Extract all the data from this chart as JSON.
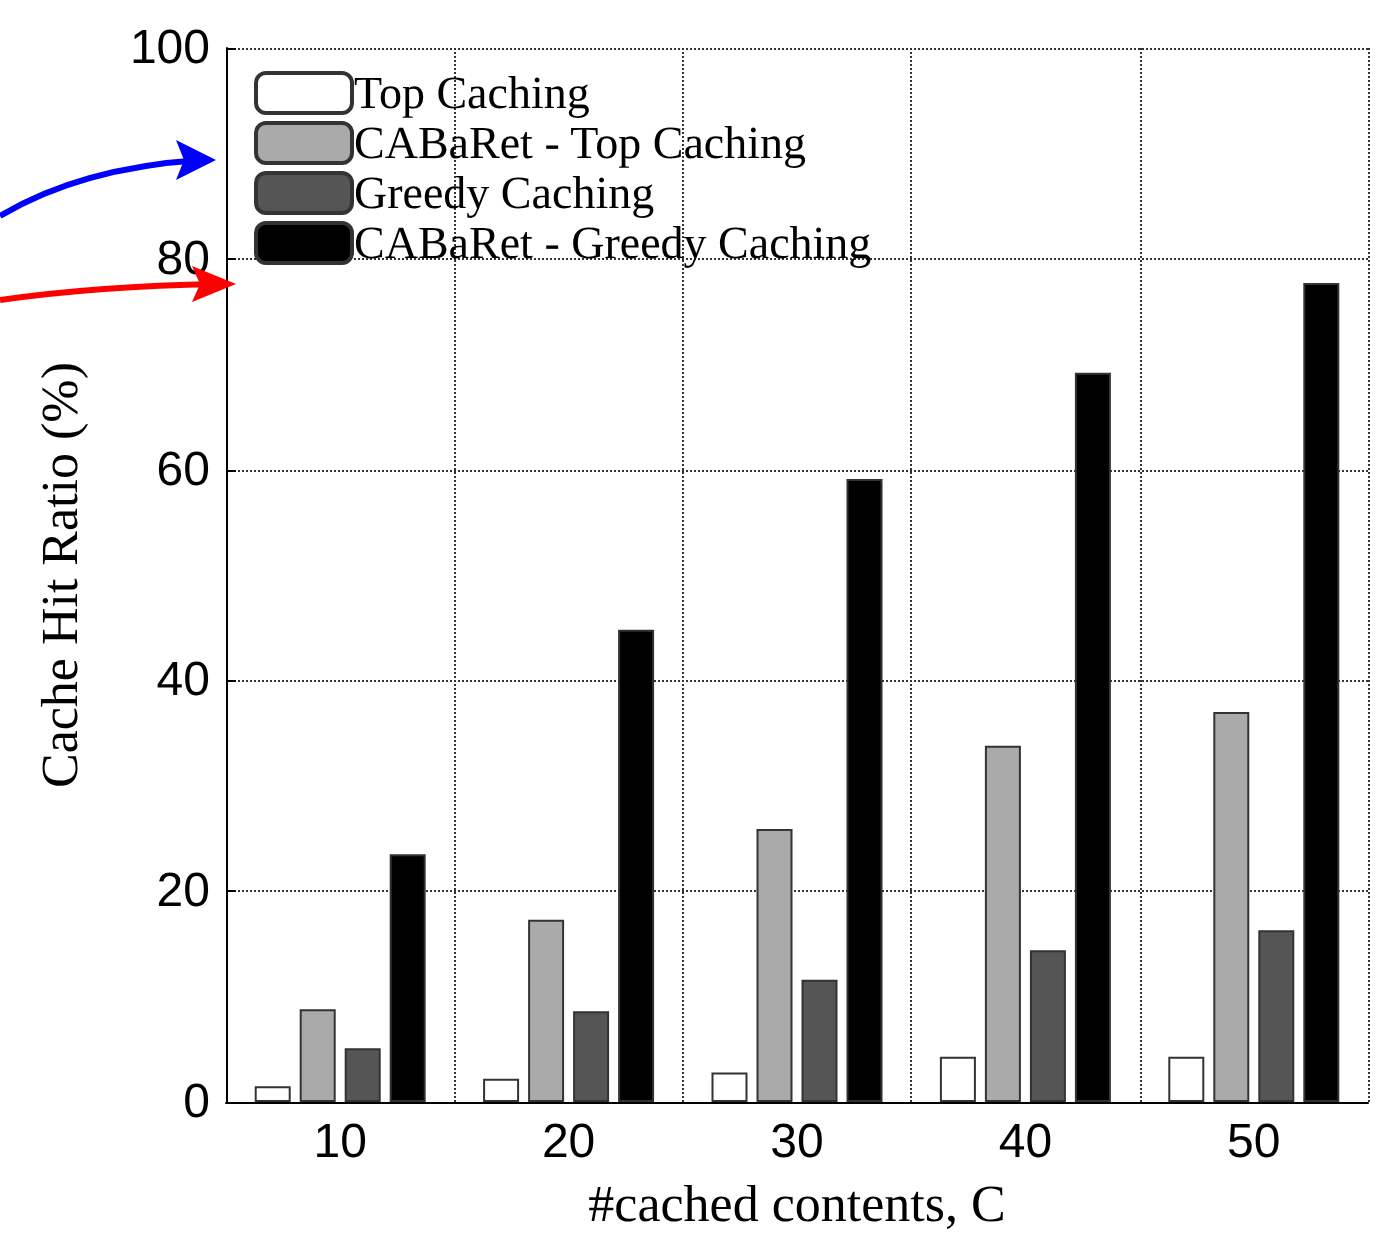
{
  "chart_data": {
    "type": "bar",
    "xlabel": "#cached contents, C",
    "ylabel": "Cache Hit Ratio (%)",
    "categories": [
      "10",
      "20",
      "30",
      "40",
      "50"
    ],
    "series": [
      {
        "name": "Top Caching",
        "color": "#ffffff",
        "values": [
          1.5,
          2.2,
          2.8,
          4.3,
          4.3
        ]
      },
      {
        "name": "CABaRet - Top Caching",
        "color": "#aaaaaa",
        "values": [
          8.8,
          17.3,
          25.9,
          33.8,
          37
        ]
      },
      {
        "name": "Greedy Caching",
        "color": "#555555",
        "values": [
          5.1,
          8.6,
          11.6,
          14.4,
          16.3
        ]
      },
      {
        "name": "CABaRet - Greedy Caching",
        "color": "#000000",
        "values": [
          23.5,
          44.8,
          59.1,
          69.2,
          77.7
        ]
      }
    ],
    "ylim": [
      0,
      100
    ],
    "yticks": [
      0,
      20,
      40,
      60,
      80,
      100
    ],
    "grid": true,
    "legend": "top left"
  }
}
